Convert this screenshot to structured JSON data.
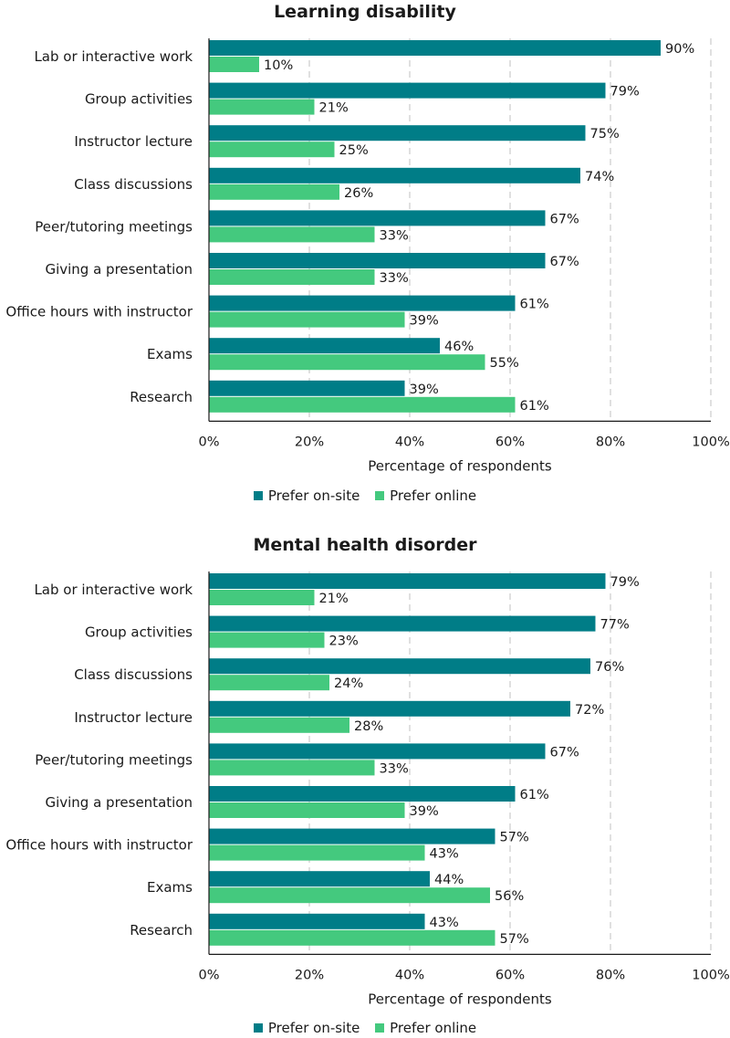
{
  "colors": {
    "onsite": "#007d87",
    "online": "#44c97e",
    "grid": "#cccccc",
    "axis": "#1a1a1a"
  },
  "legend": {
    "onsite_label": "Prefer on-site",
    "online_label": "Prefer online"
  },
  "chart_data": [
    {
      "type": "bar",
      "orientation": "horizontal",
      "title": "Learning disability",
      "xlabel": "Percentage of respondents",
      "ylabel": "",
      "xlim": [
        0,
        100
      ],
      "x_ticks": [
        "0%",
        "20%",
        "40%",
        "60%",
        "80%",
        "100%"
      ],
      "grid": "vertical dashed",
      "legend_position": "bottom",
      "categories": [
        "Lab or interactive work",
        "Group activities",
        "Instructor lecture",
        "Class discussions",
        "Peer/tutoring meetings",
        "Giving a presentation",
        "Office hours with instructor",
        "Exams",
        "Research"
      ],
      "series": [
        {
          "name": "Prefer on-site",
          "values": [
            90,
            79,
            75,
            74,
            67,
            67,
            61,
            46,
            39
          ]
        },
        {
          "name": "Prefer online",
          "values": [
            10,
            21,
            25,
            26,
            33,
            33,
            39,
            55,
            61
          ]
        }
      ]
    },
    {
      "type": "bar",
      "orientation": "horizontal",
      "title": "Mental health disorder",
      "xlabel": "Percentage of respondents",
      "ylabel": "",
      "xlim": [
        0,
        100
      ],
      "x_ticks": [
        "0%",
        "20%",
        "40%",
        "60%",
        "80%",
        "100%"
      ],
      "grid": "vertical dashed",
      "legend_position": "bottom",
      "categories": [
        "Lab or interactive work",
        "Group activities",
        "Class discussions",
        "Instructor lecture",
        "Peer/tutoring meetings",
        "Giving a presentation",
        "Office hours with instructor",
        "Exams",
        "Research"
      ],
      "series": [
        {
          "name": "Prefer on-site",
          "values": [
            79,
            77,
            76,
            72,
            67,
            61,
            57,
            44,
            43
          ]
        },
        {
          "name": "Prefer online",
          "values": [
            21,
            23,
            24,
            28,
            33,
            39,
            43,
            56,
            57
          ]
        }
      ]
    }
  ]
}
